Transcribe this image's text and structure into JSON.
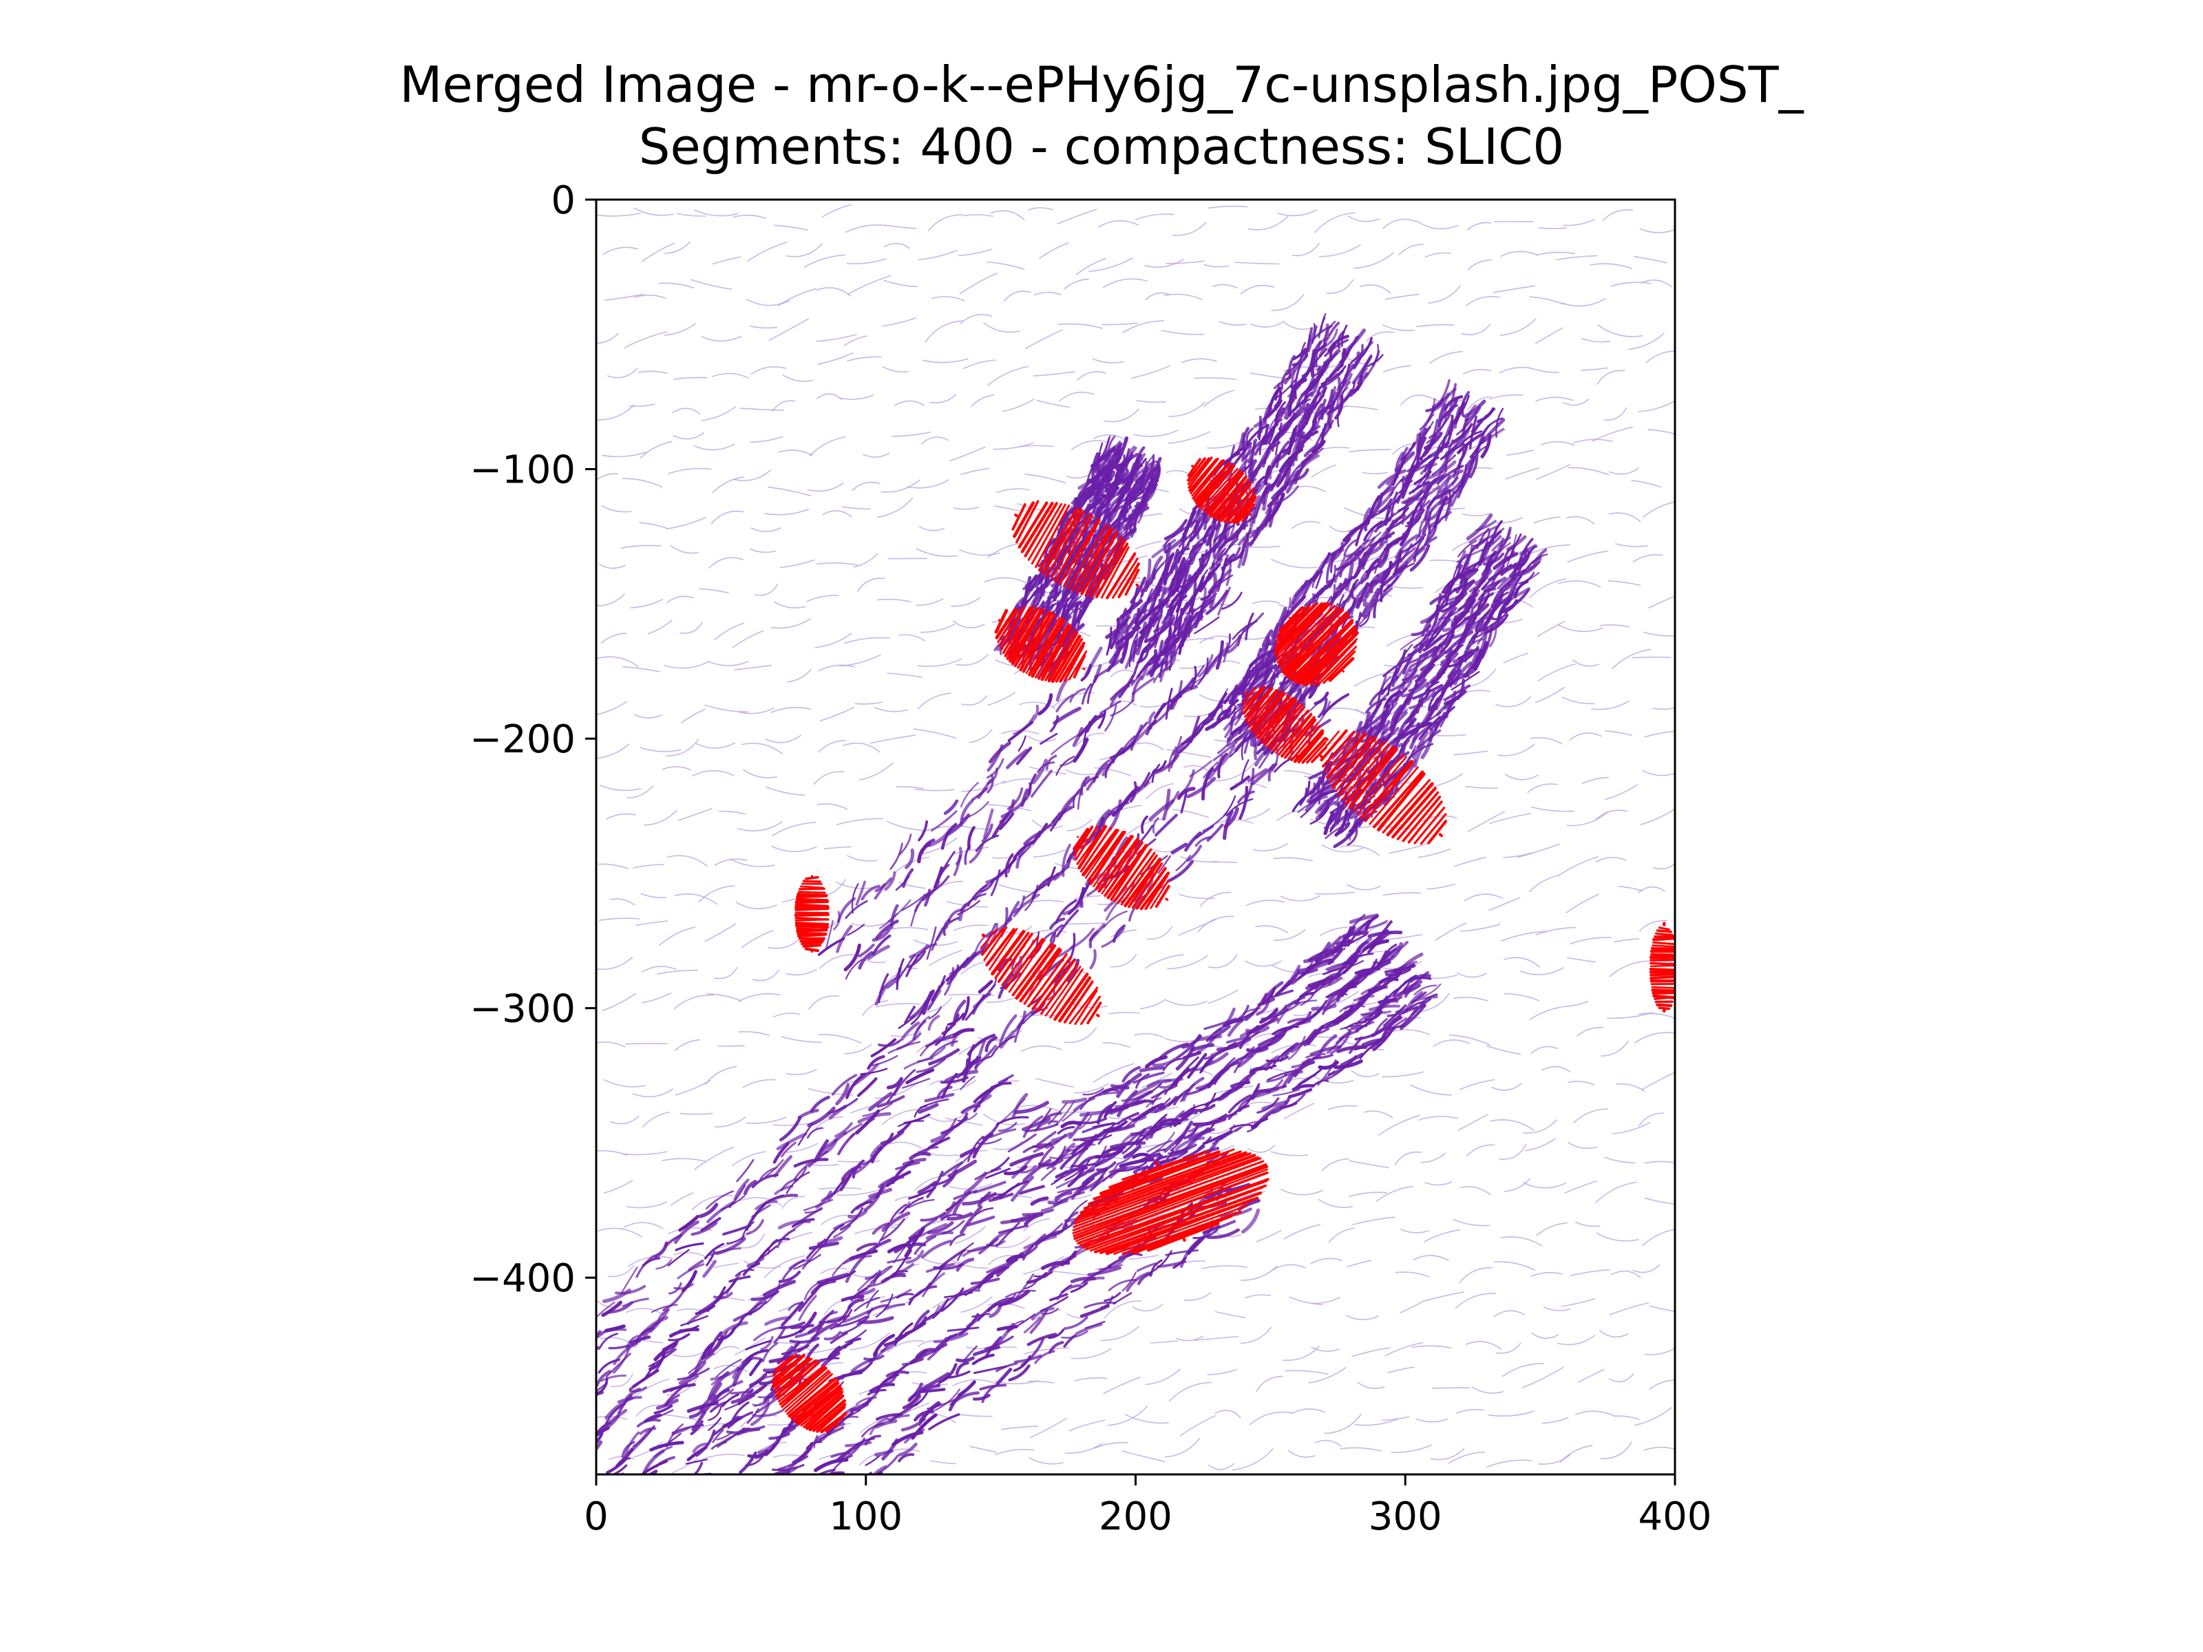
{
  "chart_data": {
    "type": "streamplot",
    "title_line1": "Merged Image - mr-o-k--ePHy6jg_7c-unsplash.jpg_POST_",
    "title_line2": "Segments: 400 - compactness: SLIC0",
    "xlabel": "",
    "ylabel": "",
    "xlim": [
      0,
      400
    ],
    "ylim": [
      -473,
      0
    ],
    "x_ticks": [
      {
        "value": 0,
        "label": "0"
      },
      {
        "value": 100,
        "label": "100"
      },
      {
        "value": 200,
        "label": "200"
      },
      {
        "value": 300,
        "label": "300"
      },
      {
        "value": 400,
        "label": "400"
      }
    ],
    "y_ticks": [
      {
        "value": 0,
        "label": "0"
      },
      {
        "value": -100,
        "label": "−100"
      },
      {
        "value": -200,
        "label": "−200"
      },
      {
        "value": -300,
        "label": "−300"
      },
      {
        "value": -400,
        "label": "−400"
      }
    ],
    "colors": {
      "background_stream": "#b79ee0",
      "hand_stream": "#6a1fa8",
      "highlight_stream": "#ff0000",
      "axis": "#000000"
    },
    "background_field": {
      "nx": 30,
      "ny": 34,
      "base_angle_deg": -8,
      "wave": 22
    },
    "hand_segments": [
      {
        "name": "forearm-upper",
        "points": [
          [
            0,
            -470
          ],
          [
            40,
            -420
          ],
          [
            95,
            -370
          ],
          [
            150,
            -320
          ]
        ],
        "width": 60,
        "angle_deg": 35
      },
      {
        "name": "forearm-lower",
        "points": [
          [
            60,
            -473
          ],
          [
            110,
            -430
          ],
          [
            170,
            -390
          ],
          [
            230,
            -350
          ]
        ],
        "width": 55,
        "angle_deg": 30
      },
      {
        "name": "palm",
        "points": [
          [
            110,
            -300
          ],
          [
            160,
            -250
          ],
          [
            210,
            -200
          ],
          [
            250,
            -160
          ]
        ],
        "width": 70,
        "angle_deg": 55
      },
      {
        "name": "thumb",
        "points": [
          [
            170,
            -360
          ],
          [
            230,
            -330
          ],
          [
            275,
            -300
          ],
          [
            300,
            -280
          ]
        ],
        "width": 35,
        "angle_deg": 30
      },
      {
        "name": "index-finger",
        "points": [
          [
            270,
            -230
          ],
          [
            295,
            -200
          ],
          [
            320,
            -160
          ],
          [
            340,
            -125
          ]
        ],
        "width": 22,
        "angle_deg": 50
      },
      {
        "name": "middle-finger",
        "points": [
          [
            240,
            -200
          ],
          [
            265,
            -160
          ],
          [
            300,
            -120
          ],
          [
            325,
            -75
          ]
        ],
        "width": 22,
        "angle_deg": 55
      },
      {
        "name": "ring-finger",
        "points": [
          [
            200,
            -170
          ],
          [
            225,
            -130
          ],
          [
            255,
            -90
          ],
          [
            280,
            -50
          ]
        ],
        "width": 22,
        "angle_deg": 60
      },
      {
        "name": "pinky-finger",
        "points": [
          [
            160,
            -170
          ],
          [
            175,
            -140
          ],
          [
            190,
            -115
          ],
          [
            200,
            -95
          ]
        ],
        "width": 20,
        "angle_deg": 60
      }
    ],
    "highlight_regions": [
      {
        "name": "pinky-red",
        "cx": 178,
        "cy": -130,
        "rx": 14,
        "ry": 26,
        "rot_deg": -60
      },
      {
        "name": "pinky-red-lower",
        "cx": 165,
        "cy": -165,
        "rx": 12,
        "ry": 18,
        "rot_deg": -60
      },
      {
        "name": "ring-tip-red",
        "cx": 232,
        "cy": -108,
        "rx": 10,
        "ry": 14,
        "rot_deg": -50
      },
      {
        "name": "middle-red",
        "cx": 267,
        "cy": -165,
        "rx": 16,
        "ry": 14,
        "rot_deg": -45
      },
      {
        "name": "middle-red-lower",
        "cx": 255,
        "cy": -195,
        "rx": 10,
        "ry": 18,
        "rot_deg": -50
      },
      {
        "name": "index-red",
        "cx": 292,
        "cy": -218,
        "rx": 14,
        "ry": 28,
        "rot_deg": -50
      },
      {
        "name": "palm-red-upper",
        "cx": 195,
        "cy": -248,
        "rx": 12,
        "ry": 20,
        "rot_deg": -55
      },
      {
        "name": "palm-red-lower",
        "cx": 165,
        "cy": -288,
        "rx": 12,
        "ry": 26,
        "rot_deg": -55
      },
      {
        "name": "thumb-red",
        "cx": 213,
        "cy": -372,
        "rx": 38,
        "ry": 15,
        "rot_deg": -20
      },
      {
        "name": "wrist-red",
        "cx": 79,
        "cy": -443,
        "rx": 11,
        "ry": 16,
        "rot_deg": -40
      },
      {
        "name": "bg-red-left",
        "cx": 80,
        "cy": -265,
        "rx": 6,
        "ry": 14,
        "rot_deg": 0
      },
      {
        "name": "bg-red-right",
        "cx": 396,
        "cy": -285,
        "rx": 5,
        "ry": 16,
        "rot_deg": 0
      }
    ]
  }
}
